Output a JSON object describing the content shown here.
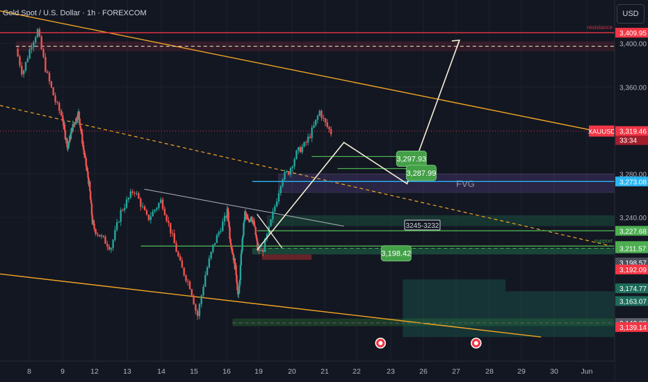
{
  "header": {
    "title": "Gold Spot / U.S. Dollar · 1h · FOREXCOM",
    "currency": "USD"
  },
  "colors": {
    "background": "#131722",
    "up": "#26a69a",
    "down": "#ef5350",
    "resistance": "#f23645",
    "support": "#4caf50",
    "channel": "#f5a623",
    "fvg": "#7e57c2",
    "path": "#f5f0d5",
    "current_price": "#f23645"
  },
  "chart_data": {
    "type": "candlestick",
    "symbol": "XAUUSD",
    "timeframe": "1h",
    "y_axis": {
      "range": [
        3130,
        3425
      ],
      "ticks": [
        {
          "value": 3400,
          "label": "3,400.00"
        },
        {
          "value": 3360,
          "label": "3,360.00"
        },
        {
          "value": 3280,
          "label": "3,280.00"
        },
        {
          "value": 3240,
          "label": "3,240.00"
        }
      ]
    },
    "x_axis": {
      "ticks": [
        {
          "day": 8,
          "label": "8"
        },
        {
          "day": 9,
          "label": "9"
        },
        {
          "day": 12,
          "label": "12"
        },
        {
          "day": 13,
          "label": "13"
        },
        {
          "day": 14,
          "label": "14"
        },
        {
          "day": 15,
          "label": "15"
        },
        {
          "day": 16,
          "label": "16"
        },
        {
          "day": 19,
          "label": "19"
        },
        {
          "day": 20,
          "label": "20"
        },
        {
          "day": 21,
          "label": "21"
        },
        {
          "day": 22,
          "label": "22"
        },
        {
          "day": 23,
          "label": "23"
        },
        {
          "day": 26,
          "label": "26"
        },
        {
          "day": 27,
          "label": "27"
        },
        {
          "day": 28,
          "label": "28"
        },
        {
          "day": 29,
          "label": "29"
        },
        {
          "day": 30,
          "label": "30"
        },
        {
          "day": 31,
          "label": "Jun"
        }
      ]
    },
    "price_keypoints": [
      {
        "day": 7.6,
        "price": 3395
      },
      {
        "day": 7.8,
        "price": 3372
      },
      {
        "day": 8.05,
        "price": 3398
      },
      {
        "day": 8.25,
        "price": 3412
      },
      {
        "day": 8.5,
        "price": 3375
      },
      {
        "day": 8.8,
        "price": 3345
      },
      {
        "day": 9.2,
        "price": 3318
      },
      {
        "day": 9.5,
        "price": 3305
      },
      {
        "day": 9.9,
        "price": 3322
      },
      {
        "day": 10.5,
        "price": 3336
      },
      {
        "day": 11.0,
        "price": 3300
      },
      {
        "day": 11.5,
        "price": 3270
      },
      {
        "day": 11.8,
        "price": 3236
      },
      {
        "day": 12.2,
        "price": 3222
      },
      {
        "day": 12.5,
        "price": 3212
      },
      {
        "day": 12.8,
        "price": 3245
      },
      {
        "day": 13.2,
        "price": 3266
      },
      {
        "day": 13.6,
        "price": 3238
      },
      {
        "day": 14.0,
        "price": 3256
      },
      {
        "day": 14.3,
        "price": 3226
      },
      {
        "day": 14.6,
        "price": 3195
      },
      {
        "day": 14.9,
        "price": 3175
      },
      {
        "day": 15.1,
        "price": 3148
      },
      {
        "day": 15.35,
        "price": 3188
      },
      {
        "day": 15.6,
        "price": 3215
      },
      {
        "day": 15.85,
        "price": 3233
      },
      {
        "day": 16.1,
        "price": 3248
      },
      {
        "day": 16.3,
        "price": 3222
      },
      {
        "day": 16.6,
        "price": 3206
      },
      {
        "day": 16.9,
        "price": 3188
      },
      {
        "day": 17.1,
        "price": 3164
      },
      {
        "day": 17.4,
        "price": 3210
      },
      {
        "day": 17.7,
        "price": 3244
      },
      {
        "day": 18.0,
        "price": 3236
      },
      {
        "day": 18.3,
        "price": 3242
      },
      {
        "day": 18.6,
        "price": 3232
      },
      {
        "day": 18.9,
        "price": 3212
      },
      {
        "day": 19.1,
        "price": 3208
      },
      {
        "day": 19.3,
        "price": 3228
      },
      {
        "day": 19.5,
        "price": 3252
      },
      {
        "day": 19.7,
        "price": 3277
      },
      {
        "day": 19.9,
        "price": 3282
      },
      {
        "day": 20.15,
        "price": 3300
      },
      {
        "day": 20.4,
        "price": 3307
      },
      {
        "day": 20.65,
        "price": 3322
      },
      {
        "day": 20.85,
        "price": 3338
      },
      {
        "day": 21.0,
        "price": 3327
      },
      {
        "day": 21.2,
        "price": 3318
      }
    ],
    "levels": [
      {
        "price": 3409.95,
        "label": "3,409.95",
        "color": "#f23645",
        "style": "solid",
        "note": "resistance"
      },
      {
        "price": 3319.46,
        "label": "3,319.46",
        "color": "#f23645",
        "style": "dotted",
        "symbol_tag": "XAUUSD",
        "countdown": "33:34"
      },
      {
        "price": 3273.08,
        "label": "3,273.08",
        "color": "#29b6f6",
        "style": "solid"
      },
      {
        "price": 3227.68,
        "label": "3,227.68",
        "color": "#4caf50",
        "style": "solid"
      },
      {
        "price": 3213.66,
        "label": "3,213.66",
        "color": "#4caf50",
        "style": "solid",
        "note": "support"
      },
      {
        "price": 3211.57,
        "label": "3,211.57",
        "color": "#4caf50",
        "style": "dashed"
      },
      {
        "price": 3198.57,
        "label": "3,198.57",
        "color": "#4a4e5a",
        "style": "none"
      },
      {
        "price": 3192.09,
        "label": "3,192.09",
        "color": "#f23645",
        "style": "none"
      },
      {
        "price": 3174.77,
        "label": "3,174.77",
        "color": "#1e6b5a",
        "style": "none"
      },
      {
        "price": 3163.07,
        "label": "3,163.07",
        "color": "#1e6b5a",
        "style": "none"
      },
      {
        "price": 3142.88,
        "label": "3,142.88",
        "color": "#5d606b",
        "style": "dashed"
      },
      {
        "price": 3139.14,
        "label": "3,139.14",
        "color": "#f23645",
        "style": "none"
      }
    ],
    "fvg_zone": {
      "label": "FVG",
      "top": 3280,
      "bottom": 3263
    },
    "annotations": [
      {
        "label": "3,297.93",
        "day": 24.9,
        "price": 3294
      },
      {
        "label": "3,287.99",
        "day": 25.8,
        "price": 3281
      },
      {
        "label": "3245-3232",
        "day": 25.9,
        "price": 3233
      },
      {
        "label": "3,198.42",
        "day": 23.5,
        "price": 3207
      }
    ],
    "projection_path": [
      {
        "day": 18.85,
        "price": 3210
      },
      {
        "day": 21.6,
        "price": 3309
      },
      {
        "day": 24.5,
        "price": 3271
      },
      {
        "day": 27.1,
        "price": 3403
      }
    ]
  }
}
